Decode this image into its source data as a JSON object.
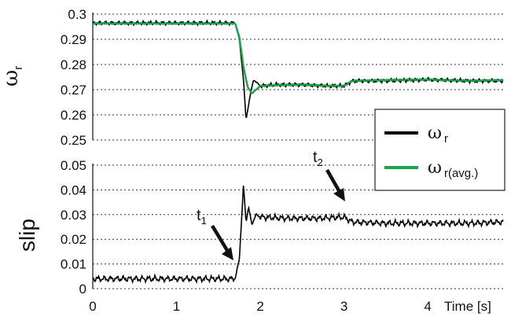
{
  "chart_data": [
    {
      "type": "line",
      "panel": "top",
      "ylabel_symbol": "ω",
      "ylabel_sub": "r",
      "ylim": [
        0.25,
        0.3
      ],
      "yticks": [
        "0.3",
        "0.29",
        "0.28",
        "0.27",
        "0.26",
        "0.25"
      ],
      "xlim": [
        0,
        4.9
      ],
      "grid": "horizontal dotted",
      "series": [
        {
          "name_symbol": "ω",
          "name_sub": "r",
          "color": "#000000",
          "x": [
            0,
            1.7,
            1.75,
            1.8,
            1.83,
            1.87,
            1.92,
            2.0,
            2.2,
            2.5,
            2.8,
            3.0,
            3.1,
            3.5,
            4.0,
            4.5,
            4.9
          ],
          "values": [
            0.2965,
            0.2965,
            0.29,
            0.274,
            0.258,
            0.266,
            0.274,
            0.2715,
            0.272,
            0.272,
            0.2715,
            0.2715,
            0.2735,
            0.2735,
            0.274,
            0.2735,
            0.2735
          ]
        },
        {
          "name_symbol": "ω",
          "name_sub": "r(avg.)",
          "color": "#1aa34a",
          "x": [
            0,
            1.7,
            1.75,
            1.8,
            1.85,
            1.9,
            1.95,
            2.0,
            2.2,
            2.5,
            2.8,
            3.0,
            3.1,
            3.5,
            4.0,
            4.5,
            4.9
          ],
          "values": [
            0.2963,
            0.2963,
            0.291,
            0.279,
            0.271,
            0.2685,
            0.27,
            0.2715,
            0.2718,
            0.272,
            0.2715,
            0.2715,
            0.2735,
            0.2738,
            0.274,
            0.2735,
            0.2738
          ]
        }
      ]
    },
    {
      "type": "line",
      "panel": "bottom",
      "ylabel": "slip",
      "ylim": [
        0,
        0.05
      ],
      "yticks": [
        "0.05",
        "0.04",
        "0.03",
        "0.02",
        "0.01",
        "0"
      ],
      "xlim": [
        0,
        4.9
      ],
      "xticks": [
        "0",
        "1",
        "2",
        "3",
        "4"
      ],
      "xlabel": "Time [s]",
      "grid": "horizontal dotted",
      "series": [
        {
          "color": "#000000",
          "x": [
            0,
            1.7,
            1.75,
            1.8,
            1.83,
            1.86,
            1.9,
            1.95,
            2.0,
            2.3,
            2.7,
            3.0,
            3.1,
            3.5,
            4.0,
            4.5,
            4.9
          ],
          "values": [
            0.004,
            0.004,
            0.012,
            0.042,
            0.027,
            0.033,
            0.026,
            0.03,
            0.029,
            0.0285,
            0.0285,
            0.029,
            0.027,
            0.0265,
            0.0265,
            0.0265,
            0.027
          ]
        }
      ],
      "annotations": [
        {
          "label": "t",
          "sub": "1",
          "x": 1.65,
          "y": 0.003
        },
        {
          "label": "t",
          "sub": "2",
          "x": 3.0,
          "y": 0.032
        }
      ]
    }
  ],
  "legend": {
    "position": "right, between panels",
    "items": [
      {
        "symbol": "ω",
        "sub": "r",
        "color": "#000000"
      },
      {
        "symbol": "ω",
        "sub": "r(avg.)",
        "color": "#1aa34a"
      }
    ]
  }
}
